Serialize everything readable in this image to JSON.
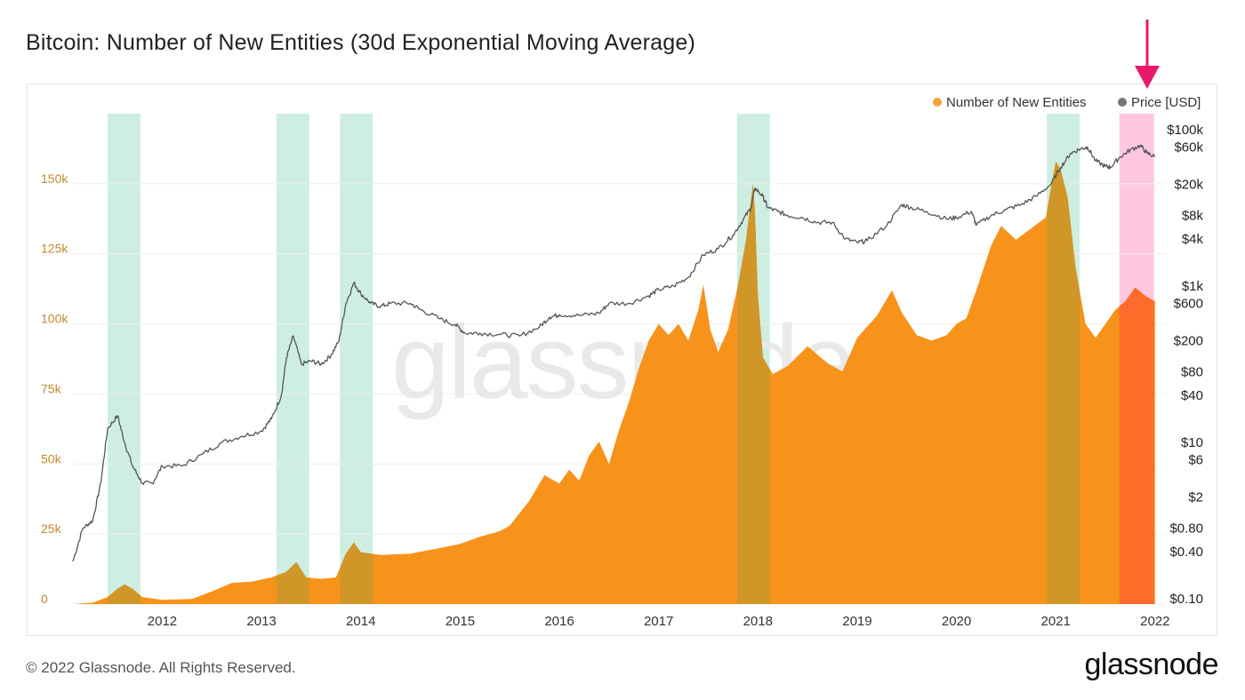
{
  "chart_title": "Bitcoin: Number of New Entities (30d Exponential Moving Average)",
  "footer": {
    "copyright": "© 2022 Glassnode. All Rights Reserved.",
    "brand": "glassnode"
  },
  "watermark": "glassnode",
  "colors": {
    "entities": "#f7931a",
    "entities_highlight": "#ff6b2a",
    "price_line": "#555555",
    "green_band": "#cdeee0",
    "pink_band": "#ffc8df",
    "arrow": "#e8196b",
    "overlap": "#c9962a"
  },
  "chart_data": {
    "type": "area",
    "title": "Bitcoin: Number of New Entities (30d Exponential Moving Average)",
    "legend": [
      {
        "name": "Number of New Entities",
        "color": "#f7a23a"
      },
      {
        "name": "Price [USD]",
        "color": "#777777"
      }
    ],
    "legend_position": "top-right",
    "x_range": [
      2011.1,
      2022.1
    ],
    "x_ticks": [
      "2012",
      "2013",
      "2014",
      "2015",
      "2016",
      "2017",
      "2018",
      "2019",
      "2020",
      "2021",
      "2022"
    ],
    "y_left": {
      "label": "",
      "range": [
        0,
        175000
      ],
      "ticks": [
        {
          "v": 0,
          "t": "0"
        },
        {
          "v": 25000,
          "t": "25k"
        },
        {
          "v": 50000,
          "t": "50k"
        },
        {
          "v": 75000,
          "t": "75k"
        },
        {
          "v": 100000,
          "t": "100k"
        },
        {
          "v": 125000,
          "t": "125k"
        },
        {
          "v": 150000,
          "t": "150k"
        }
      ]
    },
    "y_right": {
      "label": "",
      "scale": "log",
      "range": [
        0.1,
        100000
      ],
      "ticks": [
        {
          "v": 100000,
          "t": "$100k"
        },
        {
          "v": 60000,
          "t": "$60k"
        },
        {
          "v": 20000,
          "t": "$20k"
        },
        {
          "v": 8000,
          "t": "$8k"
        },
        {
          "v": 4000,
          "t": "$4k"
        },
        {
          "v": 1000,
          "t": "$1k"
        },
        {
          "v": 600,
          "t": "$600"
        },
        {
          "v": 200,
          "t": "$200"
        },
        {
          "v": 80,
          "t": "$80"
        },
        {
          "v": 40,
          "t": "$40"
        },
        {
          "v": 10,
          "t": "$10"
        },
        {
          "v": 6,
          "t": "$6"
        },
        {
          "v": 2,
          "t": "$2"
        },
        {
          "v": 0.8,
          "t": "$0.80"
        },
        {
          "v": 0.4,
          "t": "$0.40"
        },
        {
          "v": 0.1,
          "t": "$0.10"
        }
      ]
    },
    "grid": true,
    "green_bands": [
      [
        2011.45,
        2011.78
      ],
      [
        2013.15,
        2013.48
      ],
      [
        2013.79,
        2014.12
      ],
      [
        2017.79,
        2018.12
      ],
      [
        2020.91,
        2021.24
      ]
    ],
    "pink_band": [
      2021.64,
      2021.99
    ],
    "series": [
      {
        "name": "Number of New Entities",
        "x": [
          2011.1,
          2011.3,
          2011.45,
          2011.55,
          2011.62,
          2011.7,
          2011.8,
          2012.0,
          2012.3,
          2012.5,
          2012.7,
          2012.9,
          2013.1,
          2013.25,
          2013.35,
          2013.45,
          2013.6,
          2013.75,
          2013.85,
          2013.93,
          2014.0,
          2014.2,
          2014.5,
          2014.8,
          2015.0,
          2015.2,
          2015.4,
          2015.5,
          2015.7,
          2015.85,
          2016.0,
          2016.1,
          2016.2,
          2016.3,
          2016.4,
          2016.5,
          2016.6,
          2016.7,
          2016.8,
          2016.9,
          2017.0,
          2017.1,
          2017.2,
          2017.3,
          2017.4,
          2017.45,
          2017.52,
          2017.6,
          2017.7,
          2017.8,
          2017.88,
          2017.95,
          2017.97,
          2018.0,
          2018.05,
          2018.15,
          2018.3,
          2018.5,
          2018.7,
          2018.85,
          2019.0,
          2019.2,
          2019.35,
          2019.45,
          2019.6,
          2019.75,
          2019.9,
          2020.0,
          2020.1,
          2020.2,
          2020.35,
          2020.45,
          2020.6,
          2020.75,
          2020.9,
          2021.0,
          2021.05,
          2021.12,
          2021.2,
          2021.3,
          2021.4,
          2021.5,
          2021.6,
          2021.7,
          2021.8,
          2021.9,
          2022.0
        ],
        "y": [
          0,
          500,
          2500,
          5500,
          7000,
          5500,
          2500,
          1500,
          1800,
          4500,
          7500,
          8000,
          9500,
          11500,
          15000,
          9500,
          9000,
          9500,
          18000,
          22000,
          18500,
          17500,
          18000,
          20000,
          21500,
          24000,
          26000,
          28000,
          37000,
          46000,
          43000,
          48000,
          44000,
          53000,
          58000,
          50000,
          62000,
          72000,
          84000,
          94000,
          100000,
          96000,
          100000,
          94000,
          105000,
          114000,
          98000,
          90000,
          98000,
          114000,
          130000,
          150000,
          140000,
          110000,
          88000,
          82000,
          85000,
          92000,
          86000,
          83000,
          95000,
          103000,
          112000,
          104000,
          96000,
          94000,
          96000,
          100000,
          102000,
          112000,
          128000,
          135000,
          130000,
          134000,
          138000,
          158000,
          155000,
          145000,
          120000,
          100000,
          95000,
          100000,
          105000,
          108000,
          113000,
          110000,
          108000
        ]
      },
      {
        "name": "Price [USD]",
        "x": [
          2011.1,
          2011.2,
          2011.3,
          2011.38,
          2011.45,
          2011.55,
          2011.62,
          2011.7,
          2011.8,
          2011.9,
          2012.0,
          2012.2,
          2012.4,
          2012.6,
          2012.8,
          2013.0,
          2013.1,
          2013.2,
          2013.25,
          2013.32,
          2013.4,
          2013.5,
          2013.6,
          2013.7,
          2013.78,
          2013.85,
          2013.93,
          2014.0,
          2014.1,
          2014.2,
          2014.3,
          2014.5,
          2014.6,
          2014.8,
          2014.95,
          2015.05,
          2015.2,
          2015.4,
          2015.6,
          2015.8,
          2015.9,
          2016.0,
          2016.2,
          2016.4,
          2016.5,
          2016.7,
          2016.9,
          2017.0,
          2017.15,
          2017.3,
          2017.45,
          2017.6,
          2017.75,
          2017.85,
          2017.93,
          2017.97,
          2018.05,
          2018.1,
          2018.2,
          2018.3,
          2018.45,
          2018.6,
          2018.75,
          2018.88,
          2019.0,
          2019.1,
          2019.3,
          2019.45,
          2019.55,
          2019.7,
          2019.9,
          2020.0,
          2020.15,
          2020.2,
          2020.35,
          2020.5,
          2020.65,
          2020.8,
          2020.95,
          2021.05,
          2021.15,
          2021.25,
          2021.32,
          2021.4,
          2021.5,
          2021.55,
          2021.65,
          2021.75,
          2021.85,
          2021.92,
          2022.0
        ],
        "y": [
          0.3,
          0.8,
          1,
          3,
          15,
          22,
          10,
          5,
          3,
          3,
          5,
          5,
          7,
          10,
          12,
          14,
          20,
          40,
          120,
          230,
          100,
          110,
          100,
          130,
          200,
          600,
          1100,
          800,
          600,
          550,
          600,
          600,
          500,
          380,
          320,
          250,
          250,
          240,
          230,
          300,
          400,
          430,
          420,
          450,
          600,
          600,
          750,
          900,
          1000,
          1300,
          2500,
          3000,
          4500,
          7000,
          10000,
          18000,
          14000,
          10000,
          9000,
          8000,
          7500,
          6500,
          6500,
          4000,
          3600,
          3800,
          6000,
          11000,
          10000,
          9000,
          7200,
          7500,
          9000,
          6000,
          8000,
          9500,
          11000,
          14000,
          20000,
          33000,
          50000,
          57000,
          60000,
          40000,
          34000,
          33000,
          45000,
          55000,
          63000,
          50000,
          45000
        ]
      }
    ],
    "annotation": "arrow-down"
  }
}
